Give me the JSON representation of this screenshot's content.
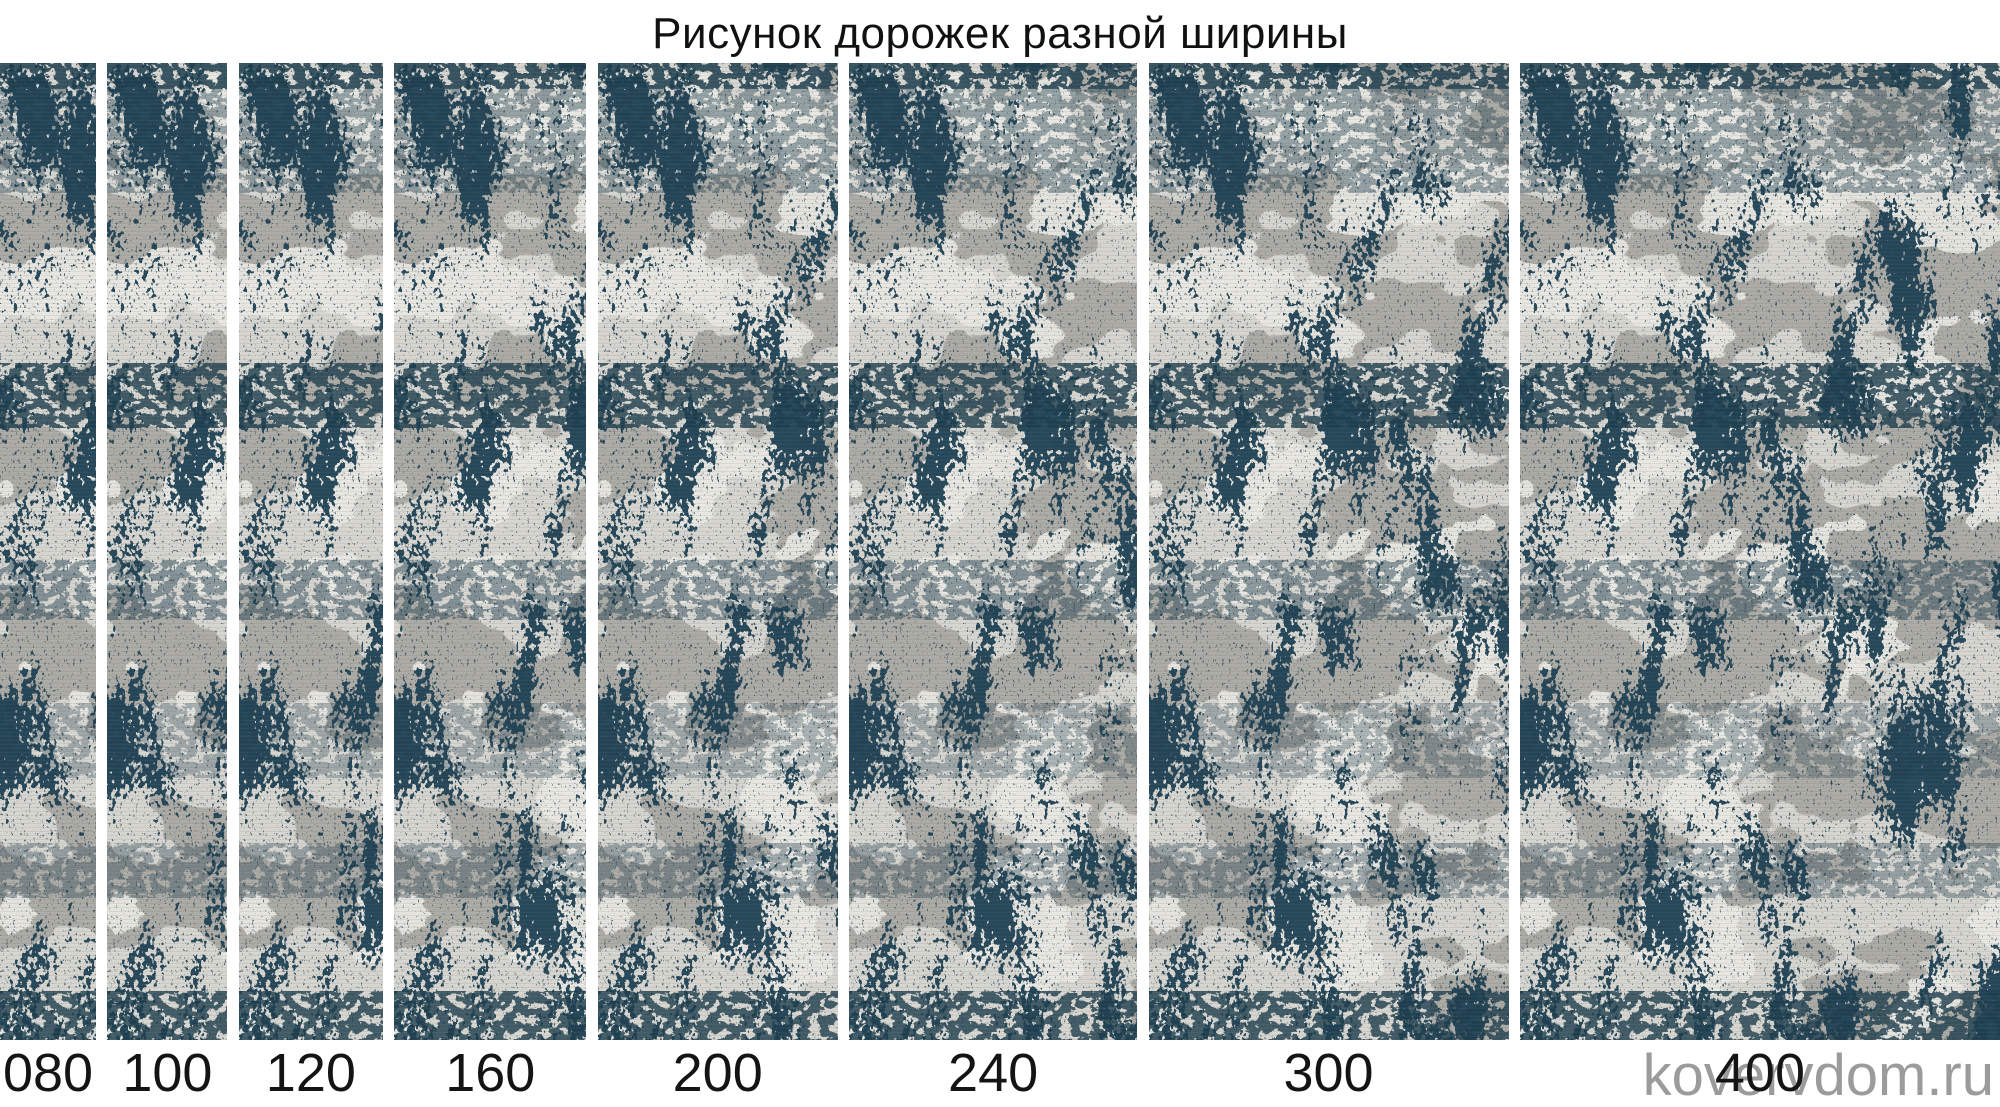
{
  "title": "Рисунок дорожек разной ширины",
  "watermark": "kovervdom.ru",
  "strips": {
    "items": [
      {
        "label": "080",
        "width_value": 80
      },
      {
        "label": "100",
        "width_value": 100
      },
      {
        "label": "120",
        "width_value": 120
      },
      {
        "label": "160",
        "width_value": 160
      },
      {
        "label": "200",
        "width_value": 200
      },
      {
        "label": "240",
        "width_value": 240
      },
      {
        "label": "300",
        "width_value": 300
      },
      {
        "label": "400",
        "width_value": 400
      }
    ]
  },
  "colors": {
    "carpet_teal": "#1d4152",
    "carpet_band_teal": "#1b3d4e",
    "carpet_speckle": "#22424f",
    "carpet_base": "#d6d4cf",
    "carpet_gray_blotch": "#a8a6a1",
    "carpet_light_patch": "#ebe9e4",
    "title_text": "#111111",
    "label_text": "#141414",
    "watermark_gray": "#9b9b9b",
    "page_background": "#ffffff"
  }
}
